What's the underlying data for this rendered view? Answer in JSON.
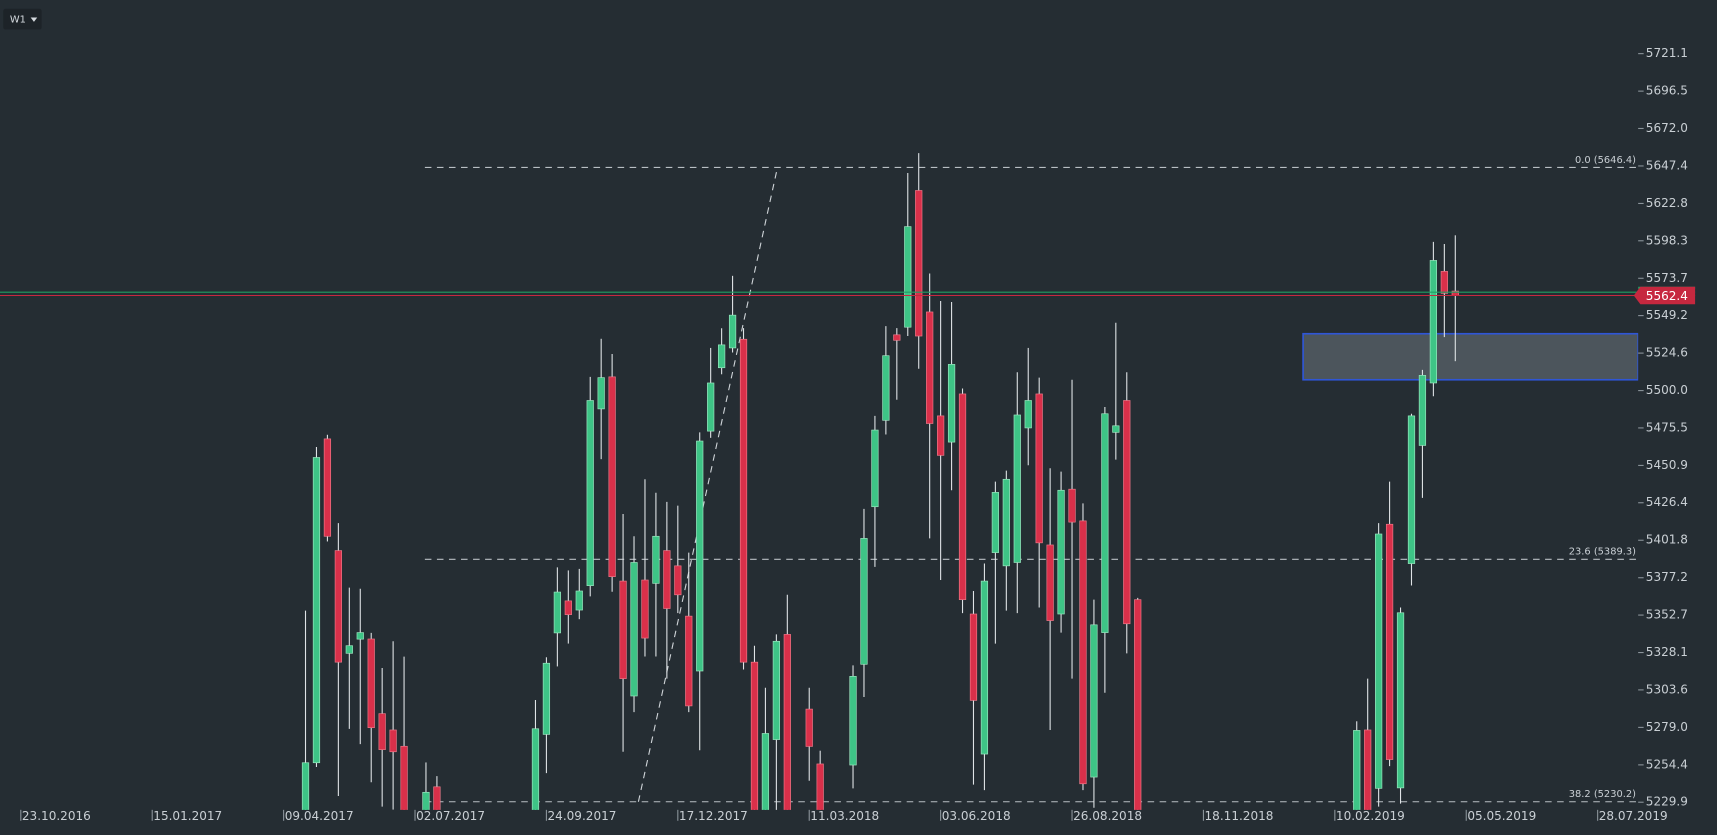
{
  "toolbar": {
    "timeframe": "W1"
  },
  "chart_data": {
    "type": "candlestick",
    "up_color": "#3ec486",
    "down_color": "#d9304a",
    "ylim": [
      5224.9,
      5756.3
    ],
    "yticks": [
      5721.1,
      5696.5,
      {
        "value": 5672.0,
        "label": "5672.0"
      },
      5647.4,
      5622.8,
      5598.3,
      5573.7,
      5549.2,
      5524.6,
      {
        "value": 5500.0,
        "label": "5500.0"
      },
      5475.5,
      5450.9,
      5426.4,
      5401.8,
      5377.2,
      5352.7,
      5328.1,
      5303.6,
      {
        "value": 5279.0,
        "label": "5279.0"
      },
      5254.4,
      5229.9
    ],
    "last_price": 5562.4,
    "zone": [
      5507.1,
      5537.3
    ],
    "levels": [
      {
        "label": "0.0 (5646.4)",
        "value": 5646.4
      },
      {
        "label": "23.6 (5389.3)",
        "value": 5389.3
      },
      {
        "label": "38.2 (5230.2)",
        "value": 5230.2
      }
    ],
    "categories": [
      "23.10.2016",
      null,
      null,
      null,
      null,
      null,
      null,
      null,
      null,
      null,
      null,
      null,
      "15.01.2017",
      null,
      null,
      null,
      null,
      null,
      null,
      null,
      null,
      null,
      null,
      null,
      "09.04.2017",
      null,
      null,
      null,
      null,
      null,
      null,
      null,
      null,
      null,
      null,
      null,
      "02.07.2017",
      null,
      null,
      null,
      null,
      null,
      null,
      null,
      null,
      null,
      null,
      null,
      "24.09.2017",
      null,
      null,
      null,
      null,
      null,
      null,
      null,
      null,
      null,
      null,
      null,
      "17.12.2017",
      null,
      null,
      null,
      null,
      null,
      null,
      null,
      null,
      null,
      null,
      null,
      "11.03.2018",
      null,
      null,
      null,
      null,
      null,
      null,
      null,
      null,
      null,
      null,
      null,
      "03.06.2018",
      null,
      null,
      null,
      null,
      null,
      null,
      null,
      null,
      null,
      null,
      null,
      "26.08.2018",
      null,
      null,
      null,
      null,
      null,
      null,
      null,
      null,
      null,
      null,
      null,
      "18.11.2018",
      null,
      null,
      null,
      null,
      null,
      null,
      null,
      null,
      null,
      null,
      null,
      "10.02.2019",
      null,
      null,
      null,
      null,
      null,
      null,
      null,
      null,
      null,
      null,
      null,
      "05.05.2019",
      null,
      null,
      null,
      null,
      null,
      null,
      null,
      null,
      null,
      null,
      null,
      "28.07.2019",
      null,
      null,
      null
    ],
    "open": [
      null,
      null,
      null,
      null,
      null,
      null,
      null,
      null,
      null,
      null,
      null,
      null,
      null,
      null,
      null,
      null,
      null,
      null,
      null,
      null,
      null,
      null,
      null,
      null,
      null,
      null,
      5210,
      5255.8,
      5468.3,
      5395,
      5327.6,
      5336.9,
      5337,
      5288,
      5277.3,
      5266.6,
      null,
      5215,
      5240,
      null,
      null,
      null,
      null,
      null,
      null,
      null,
      null,
      5215,
      5274.4,
      5341,
      5362,
      5356,
      5372,
      5488,
      5509,
      5375,
      5299.6,
      5375.7,
      5373.5,
      5395,
      5385,
      5352,
      5316,
      5473.4,
      5515,
      5528,
      5533.7,
      5321.8,
      5210,
      5271,
      5340,
      null,
      5291,
      5255,
      null,
      null,
      5254.3,
      5320.4,
      5423.8,
      5480.5,
      5536.6,
      5541.6,
      5631.3,
      5551.6,
      5483.4,
      5466.2,
      5497.8,
      5353.4,
      5261.5,
      5393.7,
      5385,
      5387.2,
      5475.5,
      5497.8,
      5398.7,
      5353.4,
      5435.3,
      5414.5,
      5246.4,
      5341.2,
      5472.6,
      5493.5,
      5362.8,
      null,
      null,
      null,
      null,
      null,
      null,
      null,
      null,
      null,
      null,
      null,
      null,
      null,
      null,
      null,
      null,
      null,
      null,
      null,
      5215,
      5277.3,
      5239,
      5412.3,
      5239.3,
      5386.5,
      5464,
      5505,
      5578.2,
      5565.3,
      null,
      null,
      null,
      null,
      null,
      null,
      null,
      null,
      null,
      null,
      null,
      null,
      null,
      null,
      null,
      null
    ],
    "high": [
      null,
      null,
      null,
      null,
      null,
      null,
      null,
      null,
      null,
      null,
      null,
      null,
      null,
      null,
      null,
      null,
      null,
      null,
      null,
      null,
      null,
      null,
      null,
      null,
      null,
      null,
      5355.6,
      5463,
      5471,
      5413,
      5370.7,
      5370,
      5341,
      5318,
      5335.5,
      5325.4,
      null,
      5256,
      5247,
      null,
      null,
      null,
      null,
      null,
      null,
      null,
      null,
      5297,
      5325,
      5384,
      5382,
      5383,
      5509,
      5534,
      5524,
      5419,
      5404.4,
      5441.8,
      5433,
      5427,
      5424.5,
      5393.7,
      5472.6,
      5528,
      5540.9,
      5575.3,
      5541,
      5332.6,
      5305,
      5340,
      5366,
      null,
      5305,
      5263.7,
      null,
      null,
      5319.7,
      5422.4,
      5483.4,
      5542.3,
      5541,
      5642.8,
      5655.8,
      5576.8,
      5558.8,
      5558.1,
      5501.4,
      5368.5,
      5386.5,
      5440.3,
      5447.5,
      5512,
      5528,
      5508.5,
      5449,
      5446.8,
      5507.1,
      5426,
      5362.8,
      5489.2,
      5544.5,
      5512,
      5364,
      null,
      null,
      null,
      null,
      null,
      null,
      null,
      null,
      null,
      null,
      null,
      null,
      null,
      null,
      null,
      null,
      null,
      null,
      null,
      5283,
      5311,
      5413,
      5440.3,
      5357.7,
      5484.8,
      5513.6,
      5597.6,
      5596.2,
      5601.9,
      null,
      null,
      null,
      null,
      null,
      null,
      null,
      null,
      null,
      null,
      null,
      null,
      null,
      null,
      null,
      null
    ],
    "low": [
      null,
      null,
      null,
      null,
      null,
      null,
      null,
      null,
      null,
      null,
      null,
      null,
      null,
      null,
      null,
      null,
      null,
      null,
      null,
      null,
      null,
      null,
      null,
      null,
      null,
      null,
      5205,
      5253,
      5401,
      5234,
      5278,
      5268,
      5243,
      5227,
      5225,
      5205,
      null,
      5212,
      5212,
      null,
      null,
      null,
      null,
      null,
      null,
      null,
      null,
      5212,
      5249,
      5319,
      5334,
      5350,
      5365,
      5455,
      5368,
      5263,
      5289,
      5325.5,
      5325.5,
      5311,
      5354,
      5289,
      5264,
      5469,
      5510.7,
      5525,
      5317,
      5205,
      5205,
      5205,
      5205,
      null,
      5244,
      5205,
      null,
      null,
      5239,
      5298.9,
      5384.3,
      5471.2,
      5494,
      5535.8,
      5514.3,
      5403,
      5375.7,
      5434.6,
      5354,
      5241.4,
      5237.8,
      5334,
      5355.6,
      5354,
      5451,
      5357.7,
      5277.3,
      5341.2,
      5311,
      5237.8,
      5226.3,
      5301.7,
      5454.7,
      5327.6,
      5205,
      null,
      null,
      null,
      null,
      null,
      null,
      null,
      null,
      null,
      null,
      null,
      null,
      null,
      null,
      null,
      null,
      null,
      null,
      null,
      5210,
      5210,
      5227,
      5253.6,
      5229,
      5372.1,
      5429.6,
      5496.3,
      5535.1,
      5519.3,
      null,
      null,
      null,
      null,
      null,
      null,
      null,
      null,
      null,
      null,
      null,
      null,
      null,
      null,
      null,
      null
    ],
    "close": [
      null,
      null,
      null,
      null,
      null,
      null,
      null,
      null,
      null,
      null,
      null,
      null,
      null,
      null,
      null,
      null,
      null,
      null,
      null,
      null,
      null,
      null,
      null,
      null,
      null,
      null,
      5255.8,
      5456.1,
      5404.4,
      5321.8,
      5332.6,
      5341.2,
      5278.8,
      5264.4,
      5263,
      5210,
      null,
      5236.4,
      5215,
      null,
      null,
      null,
      null,
      null,
      null,
      null,
      null,
      5278.1,
      5321.1,
      5367.8,
      5353,
      5368.5,
      5493.5,
      5508.5,
      5377.9,
      5311,
      5387.2,
      5337.6,
      5404.4,
      5357,
      5366,
      5293.1,
      5466.9,
      5505,
      5530,
      5549.5,
      5321.8,
      5210,
      5275,
      5335.5,
      5210,
      null,
      5266.5,
      5210,
      null,
      null,
      5312.5,
      5403,
      5474.1,
      5522.9,
      5533,
      5607.6,
      5535.8,
      5478.4,
      5457.5,
      5517.2,
      5362.8,
      5296.7,
      5375,
      5433.2,
      5441.8,
      5484,
      5493.5,
      5400.1,
      5349.1,
      5434.6,
      5413.7,
      5242,
      5346.3,
      5484.8,
      5476.9,
      5347,
      5210,
      null,
      null,
      null,
      null,
      null,
      null,
      null,
      null,
      null,
      null,
      null,
      null,
      null,
      null,
      null,
      null,
      null,
      null,
      null,
      5277,
      5215,
      5405.9,
      5257.9,
      5354.2,
      5483.4,
      5510,
      5585.4,
      5563.8,
      5562.4,
      null,
      null,
      null,
      null,
      null,
      null,
      null,
      null,
      null,
      null,
      null,
      null,
      null,
      null,
      null,
      null
    ]
  }
}
